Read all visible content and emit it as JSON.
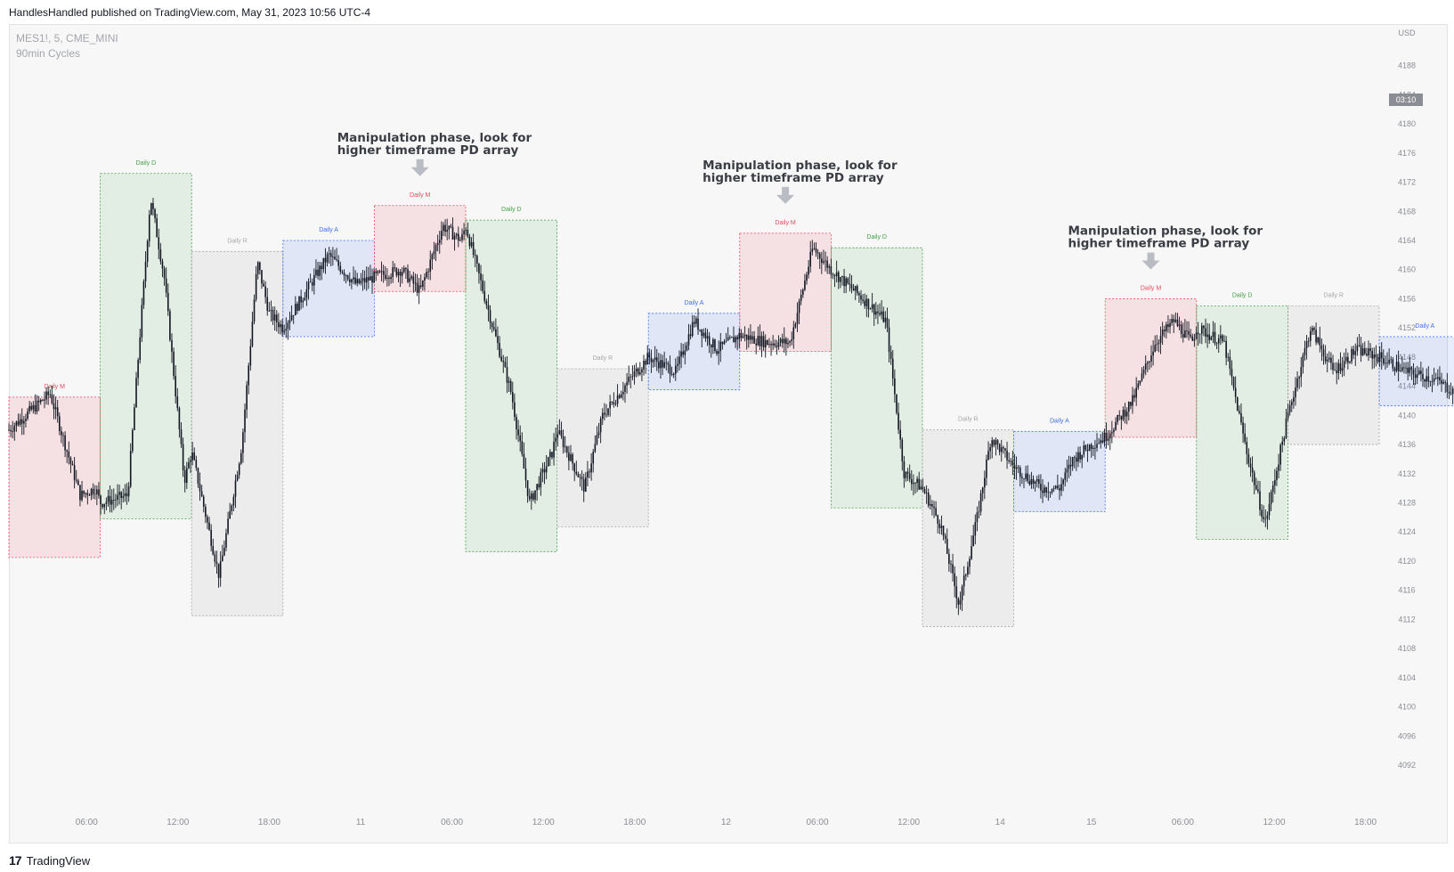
{
  "header": {
    "published": "HandlesHandled published on TradingView.com, May 31, 2023 10:56 UTC-4"
  },
  "symbol": {
    "line1": "MES1!, 5, CME_MINI",
    "line2": "90min Cycles"
  },
  "footer": {
    "logo_glyph": "17",
    "brand": "TradingView"
  },
  "colors": {
    "M": "#e84a5f",
    "D": "#43a047",
    "R": "#a6a6a6",
    "A": "#3d6fe8",
    "candle": "#131722",
    "price_tag": "#8a8d94"
  },
  "chart_data": {
    "type": "candlestick",
    "currency": "USD",
    "price_tag": "03:10",
    "ylim": [
      4089,
      4194
    ],
    "y_ticks": [
      4092,
      4096,
      4100,
      4104,
      4108,
      4112,
      4116,
      4120,
      4124,
      4128,
      4132,
      4136,
      4140,
      4144,
      4148,
      4152,
      4156,
      4160,
      4164,
      4168,
      4172,
      4176,
      4180,
      4184,
      4188
    ],
    "x_ticks": [
      "06:00",
      "12:00",
      "18:00",
      "11",
      "06:00",
      "12:00",
      "18:00",
      "12",
      "06:00",
      "12:00",
      "14",
      "15",
      "06:00",
      "12:00",
      "18:00"
    ],
    "cycles": [
      {
        "label": "Daily M",
        "phase": "M",
        "high": 4142.5,
        "low": 4120.5
      },
      {
        "label": "Daily D",
        "phase": "D",
        "high": 4173.2,
        "low": 4125.8
      },
      {
        "label": "Daily R",
        "phase": "R",
        "high": 4162.5,
        "low": 4112.5
      },
      {
        "label": "Daily A",
        "phase": "A",
        "high": 4164.0,
        "low": 4150.8
      },
      {
        "label": "Daily M",
        "phase": "M",
        "high": 4168.8,
        "low": 4157.0
      },
      {
        "label": "Daily D",
        "phase": "D",
        "high": 4166.8,
        "low": 4121.3
      },
      {
        "label": "Daily R",
        "phase": "R",
        "high": 4146.4,
        "low": 4124.7
      },
      {
        "label": "Daily A",
        "phase": "A",
        "high": 4154.0,
        "low": 4143.5
      },
      {
        "label": "Daily M",
        "phase": "M",
        "high": 4165.0,
        "low": 4148.8
      },
      {
        "label": "Daily D",
        "phase": "D",
        "high": 4163.0,
        "low": 4127.3
      },
      {
        "label": "Daily R",
        "phase": "R",
        "high": 4138.0,
        "low": 4111.0
      },
      {
        "label": "Daily A",
        "phase": "A",
        "high": 4137.8,
        "low": 4126.8
      },
      {
        "label": "Daily M",
        "phase": "M",
        "high": 4156.0,
        "low": 4137.0
      },
      {
        "label": "Daily D",
        "phase": "D",
        "high": 4155.0,
        "low": 4123.0
      },
      {
        "label": "Daily R",
        "phase": "R",
        "high": 4155.0,
        "low": 4136.0
      },
      {
        "label": "Daily A",
        "phase": "A",
        "high": 4150.8,
        "low": 4141.3
      }
    ],
    "annotations": [
      {
        "line1": "Manipulation phase, look for",
        "line2": "higher timeframe PD array",
        "cycle": 4
      },
      {
        "line1": "Manipulation phase, look for",
        "line2": "higher timeframe PD array",
        "cycle": 8
      },
      {
        "line1": "Manipulation phase, look for",
        "line2": "higher timeframe PD array",
        "cycle": 12
      }
    ],
    "price_path": [
      [
        0,
        4138
      ],
      [
        0.45,
        4143
      ],
      [
        0.78,
        4129
      ],
      [
        0.95,
        4130
      ],
      [
        1.0,
        4128
      ],
      [
        1.3,
        4129
      ],
      [
        1.55,
        4170
      ],
      [
        1.7,
        4159
      ],
      [
        1.92,
        4131
      ],
      [
        2.0,
        4135
      ],
      [
        2.3,
        4118
      ],
      [
        2.55,
        4136
      ],
      [
        2.72,
        4161
      ],
      [
        2.85,
        4154
      ],
      [
        3.0,
        4152
      ],
      [
        3.5,
        4162
      ],
      [
        3.8,
        4158
      ],
      [
        4.0,
        4159
      ],
      [
        4.3,
        4160
      ],
      [
        4.5,
        4157
      ],
      [
        4.75,
        4166
      ],
      [
        4.95,
        4164
      ],
      [
        5.0,
        4166
      ],
      [
        5.3,
        4152
      ],
      [
        5.5,
        4143
      ],
      [
        5.7,
        4128
      ],
      [
        5.95,
        4135
      ],
      [
        6.0,
        4138
      ],
      [
        6.3,
        4130
      ],
      [
        6.5,
        4140
      ],
      [
        6.8,
        4145
      ],
      [
        7.0,
        4148
      ],
      [
        7.3,
        4146
      ],
      [
        7.5,
        4153
      ],
      [
        7.75,
        4149
      ],
      [
        8.0,
        4151
      ],
      [
        8.3,
        4150
      ],
      [
        8.55,
        4150
      ],
      [
        8.8,
        4163
      ],
      [
        9.0,
        4160
      ],
      [
        9.35,
        4156
      ],
      [
        9.6,
        4153
      ],
      [
        9.8,
        4132
      ],
      [
        10.0,
        4130
      ],
      [
        10.2,
        4125
      ],
      [
        10.4,
        4114
      ],
      [
        10.6,
        4126
      ],
      [
        10.75,
        4137
      ],
      [
        11.0,
        4133
      ],
      [
        11.3,
        4130
      ],
      [
        11.5,
        4130
      ],
      [
        11.65,
        4134
      ],
      [
        11.85,
        4136
      ],
      [
        12.0,
        4137
      ],
      [
        12.3,
        4142
      ],
      [
        12.55,
        4150
      ],
      [
        12.75,
        4153
      ],
      [
        12.95,
        4150
      ],
      [
        13.0,
        4152
      ],
      [
        13.3,
        4150
      ],
      [
        13.55,
        4135
      ],
      [
        13.75,
        4125
      ],
      [
        14.0,
        4140
      ],
      [
        14.25,
        4152
      ],
      [
        14.5,
        4146
      ],
      [
        14.75,
        4149
      ],
      [
        15.0,
        4148
      ],
      [
        15.3,
        4146
      ],
      [
        15.6,
        4145
      ],
      [
        15.85,
        4143
      ]
    ]
  }
}
